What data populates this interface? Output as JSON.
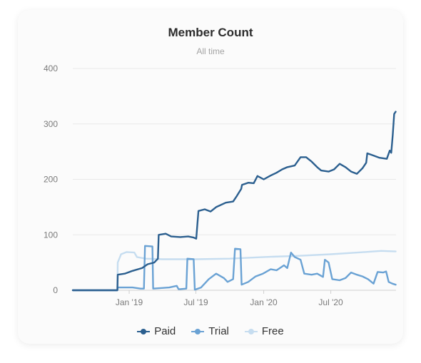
{
  "chart_data": {
    "type": "line",
    "title": "Member Count",
    "subtitle": "All time",
    "ylim": [
      0,
      400
    ],
    "y_ticks": [
      0,
      100,
      200,
      300,
      400
    ],
    "x_range": [
      "2018-08-01",
      "2020-12-25"
    ],
    "x_ticks": [
      {
        "date": "2019-01-01",
        "label": "Jan '19"
      },
      {
        "date": "2019-07-01",
        "label": "Jul '19"
      },
      {
        "date": "2020-01-01",
        "label": "Jan '20"
      },
      {
        "date": "2020-07-01",
        "label": "Jul '20"
      }
    ],
    "grid": true,
    "legend_position": "bottom",
    "series": [
      {
        "name": "Paid",
        "color": "#2b5f8f",
        "points": [
          [
            "2018-08-01",
            0
          ],
          [
            "2018-11-30",
            0
          ],
          [
            "2018-12-01",
            28
          ],
          [
            "2018-12-20",
            30
          ],
          [
            "2019-01-10",
            35
          ],
          [
            "2019-02-05",
            40
          ],
          [
            "2019-02-20",
            47
          ],
          [
            "2019-03-10",
            50
          ],
          [
            "2019-03-20",
            57
          ],
          [
            "2019-03-22",
            100
          ],
          [
            "2019-04-10",
            102
          ],
          [
            "2019-04-25",
            97
          ],
          [
            "2019-05-20",
            96
          ],
          [
            "2019-06-10",
            97
          ],
          [
            "2019-06-25",
            95
          ],
          [
            "2019-07-02",
            93
          ],
          [
            "2019-07-08",
            143
          ],
          [
            "2019-07-25",
            146
          ],
          [
            "2019-08-10",
            142
          ],
          [
            "2019-08-25",
            150
          ],
          [
            "2019-09-20",
            158
          ],
          [
            "2019-10-10",
            160
          ],
          [
            "2019-10-20",
            170
          ],
          [
            "2019-11-01",
            183
          ],
          [
            "2019-11-03",
            190
          ],
          [
            "2019-11-20",
            194
          ],
          [
            "2019-12-05",
            193
          ],
          [
            "2019-12-15",
            206
          ],
          [
            "2020-01-01",
            200
          ],
          [
            "2020-01-20",
            207
          ],
          [
            "2020-02-05",
            212
          ],
          [
            "2020-02-20",
            218
          ],
          [
            "2020-03-05",
            222
          ],
          [
            "2020-03-25",
            225
          ],
          [
            "2020-04-10",
            240
          ],
          [
            "2020-04-25",
            240
          ],
          [
            "2020-05-10",
            232
          ],
          [
            "2020-05-25",
            222
          ],
          [
            "2020-06-05",
            216
          ],
          [
            "2020-06-25",
            214
          ],
          [
            "2020-07-10",
            218
          ],
          [
            "2020-07-25",
            228
          ],
          [
            "2020-08-10",
            222
          ],
          [
            "2020-08-25",
            214
          ],
          [
            "2020-09-10",
            210
          ],
          [
            "2020-09-25",
            220
          ],
          [
            "2020-10-05",
            230
          ],
          [
            "2020-10-08",
            247
          ],
          [
            "2020-10-25",
            243
          ],
          [
            "2020-11-10",
            239
          ],
          [
            "2020-11-30",
            237
          ],
          [
            "2020-12-08",
            252
          ],
          [
            "2020-12-12",
            248
          ],
          [
            "2020-12-16",
            280
          ],
          [
            "2020-12-20",
            318
          ],
          [
            "2020-12-24",
            322
          ]
        ]
      },
      {
        "name": "Trial",
        "color": "#6aa2d4",
        "points": [
          [
            "2018-08-01",
            0
          ],
          [
            "2018-11-30",
            0
          ],
          [
            "2018-12-01",
            5
          ],
          [
            "2019-01-10",
            5
          ],
          [
            "2019-02-01",
            3
          ],
          [
            "2019-02-10",
            3
          ],
          [
            "2019-02-13",
            80
          ],
          [
            "2019-03-05",
            79
          ],
          [
            "2019-03-07",
            3
          ],
          [
            "2019-04-20",
            5
          ],
          [
            "2019-05-10",
            8
          ],
          [
            "2019-05-15",
            2
          ],
          [
            "2019-05-20",
            2
          ],
          [
            "2019-06-05",
            3
          ],
          [
            "2019-06-08",
            57
          ],
          [
            "2019-06-25",
            56
          ],
          [
            "2019-06-28",
            1
          ],
          [
            "2019-07-15",
            5
          ],
          [
            "2019-08-05",
            20
          ],
          [
            "2019-08-25",
            30
          ],
          [
            "2019-09-15",
            22
          ],
          [
            "2019-09-25",
            15
          ],
          [
            "2019-10-10",
            20
          ],
          [
            "2019-10-15",
            75
          ],
          [
            "2019-10-30",
            74
          ],
          [
            "2019-11-02",
            10
          ],
          [
            "2019-11-20",
            15
          ],
          [
            "2019-12-10",
            25
          ],
          [
            "2019-12-30",
            30
          ],
          [
            "2020-01-20",
            38
          ],
          [
            "2020-02-05",
            36
          ],
          [
            "2020-02-25",
            45
          ],
          [
            "2020-03-05",
            40
          ],
          [
            "2020-03-15",
            68
          ],
          [
            "2020-03-25",
            60
          ],
          [
            "2020-04-10",
            55
          ],
          [
            "2020-04-20",
            30
          ],
          [
            "2020-05-10",
            28
          ],
          [
            "2020-05-25",
            30
          ],
          [
            "2020-06-10",
            24
          ],
          [
            "2020-06-15",
            55
          ],
          [
            "2020-06-25",
            50
          ],
          [
            "2020-07-05",
            20
          ],
          [
            "2020-07-25",
            18
          ],
          [
            "2020-08-10",
            22
          ],
          [
            "2020-08-25",
            32
          ],
          [
            "2020-09-10",
            28
          ],
          [
            "2020-09-25",
            25
          ],
          [
            "2020-10-10",
            20
          ],
          [
            "2020-10-25",
            12
          ],
          [
            "2020-11-05",
            33
          ],
          [
            "2020-11-20",
            32
          ],
          [
            "2020-11-28",
            34
          ],
          [
            "2020-12-05",
            15
          ],
          [
            "2020-12-15",
            12
          ],
          [
            "2020-12-24",
            10
          ]
        ]
      },
      {
        "name": "Free",
        "color": "#c6ddf0",
        "points": [
          [
            "2018-08-01",
            0
          ],
          [
            "2018-11-30",
            0
          ],
          [
            "2018-12-01",
            50
          ],
          [
            "2018-12-10",
            65
          ],
          [
            "2018-12-25",
            69
          ],
          [
            "2019-01-15",
            68
          ],
          [
            "2019-01-22",
            60
          ],
          [
            "2019-02-15",
            57
          ],
          [
            "2019-04-01",
            56
          ],
          [
            "2019-07-01",
            56
          ],
          [
            "2019-10-01",
            57
          ],
          [
            "2020-01-01",
            60
          ],
          [
            "2020-04-01",
            62
          ],
          [
            "2020-07-01",
            65
          ],
          [
            "2020-10-01",
            69
          ],
          [
            "2020-11-15",
            71
          ],
          [
            "2020-12-24",
            70
          ]
        ]
      }
    ]
  }
}
